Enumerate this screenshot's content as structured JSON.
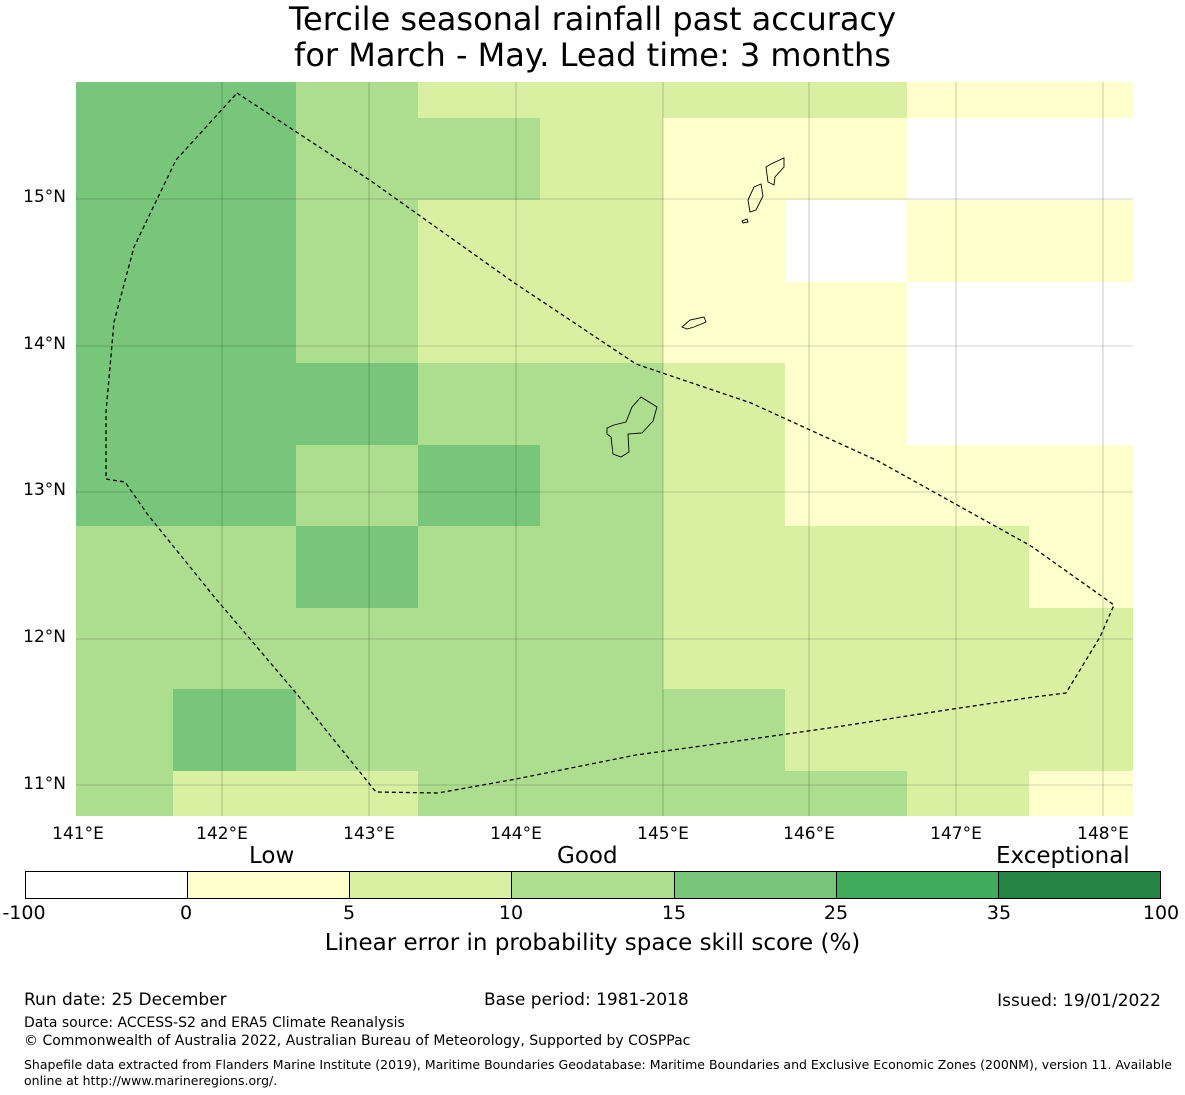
{
  "title": {
    "line1": "Tercile seasonal rainfall past accuracy",
    "line2": "for March - May. Lead time: 3 months"
  },
  "map": {
    "y_labels": [
      "15°N",
      "14°N",
      "13°N",
      "12°N",
      "11°N"
    ],
    "x_labels": [
      "141°E",
      "142°E",
      "143°E",
      "144°E",
      "145°E",
      "146°E",
      "147°E",
      "148°E"
    ],
    "lon_range": [
      140.99,
      148.2
    ],
    "lat_range": [
      10.8,
      15.8
    ],
    "grid_legend": [
      "0-5",
      "5-10",
      "10-15",
      "15-25"
    ],
    "cells_note": "Grid of LEPS skill score categories by lon/lat; blank = below 0"
  },
  "legend": {
    "categories": [
      "Low",
      "Good",
      "Exceptional"
    ],
    "ticks": [
      "-100",
      "0",
      "5",
      "10",
      "15",
      "25",
      "35",
      "100"
    ],
    "colors": [
      "#ffffff",
      "#ffffcc",
      "#d9f0a3",
      "#addd8e",
      "#78c679",
      "#41ab5d",
      "#238443"
    ],
    "title": "Linear error in probability space skill score (%)"
  },
  "footer": {
    "run_date": "Run date: 25 December",
    "base_period": "Base period: 1981-2018",
    "issued": "Issued: 19/01/2022",
    "data_source": "Data source: ACCESS-S2 and ERA5 Climate Reanalysis",
    "copyright": "© Commonwealth of Australia 2022, Australian Bureau of Meteorology, Supported by COSPPac",
    "shapefile": "Shapefile data extracted from Flanders Marine Institute (2019), Maritime Boundaries Geodatabase: Maritime Boundaries and Exclusive Economic Zones (200NM), version 11. Available online at http://www.marineregions.org/."
  }
}
